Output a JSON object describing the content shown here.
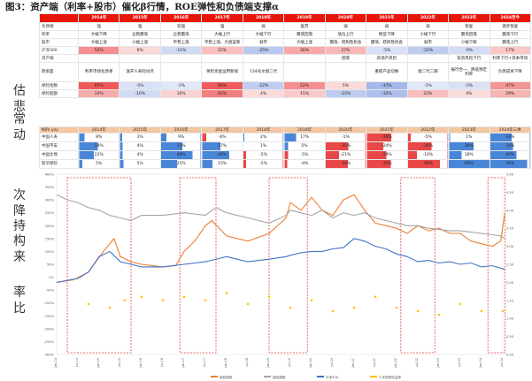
{
  "title": "图3：资产端（利率+股市）催化β行情，ROE弹性和负债端支撑α",
  "side_text": [
    "估",
    "悲",
    "常",
    "动",
    "次",
    "降",
    "持",
    "构",
    "来",
    "率",
    "比"
  ],
  "table1": {
    "years": [
      "2014年",
      "2015年",
      "2016年",
      "2017年",
      "2018年",
      "2019年",
      "2020年",
      "2021年",
      "2022年",
      "2023年",
      "2024至今"
    ],
    "rows": [
      {
        "label": "负债端",
        "cells": [
          "强",
          "强",
          "较强",
          "强",
          "弱",
          "复苏",
          "弱",
          "弱",
          "弱",
          "恢复",
          "逐步恢复"
        ]
      },
      {
        "label": "利率",
        "cells": [
          "大幅下降",
          "企稳震荡",
          "企稳震荡",
          "大幅上行",
          "大幅下行",
          "震荡回落",
          "低位上行",
          "明显下降",
          "小幅下行",
          "震荡回落",
          "震荡下行"
        ]
      },
      {
        "label": "股市",
        "cells": [
          "大幅上涨",
          "小幅上涨",
          "平稳上涨",
          "平稳上涨、大盘蓝筹",
          "弱市",
          "大幅上涨",
          "震荡、结构性机会",
          "震荡、结构性机会",
          "弱市",
          "小幅下跌",
          "震荡上行"
        ]
      },
      {
        "label": "沪深300",
        "cells": [
          "52%",
          "6%",
          "-11%",
          "22%",
          "-25%",
          "36%",
          "27%",
          "-5%",
          "-22%",
          "-9%",
          "17%"
        ]
      },
      {
        "label": "资产端",
        "cells": [
          "",
          "",
          "",
          "",
          "",
          "",
          "疫情",
          "房地产风险",
          "",
          "投资风险下行",
          "利率下行+资本市场"
        ]
      },
      {
        "label": "政策面",
        "cells": [
          "利率市场化改革",
          "放开人寿险试点",
          "",
          "保险资金运用新规",
          "134号文偿二代",
          "",
          "",
          "重疾产品切换",
          "偿二代二期",
          "报行合一、降低预定利率",
          "负债成本下降"
        ]
      },
      {
        "label": "保险指数",
        "cells": [
          "85%",
          "-5%",
          "-1%",
          "84%",
          "-22%",
          "52%",
          "5%",
          "-37%",
          "-1%",
          "-5%",
          "47%"
        ]
      },
      {
        "label": "保险超额",
        "cells": [
          "33%",
          "-10%",
          "10%",
          "62%",
          "4%",
          "15%",
          "-22%",
          "-32%",
          "22%",
          "4%",
          "29%"
        ]
      }
    ]
  },
  "table2": {
    "years": [
      "NBV yoy",
      "2014年",
      "2015年",
      "2016年",
      "2017年",
      "2018年",
      "2019年",
      "2020年",
      "2021年",
      "2022年",
      "2023年",
      "2024年三季"
    ],
    "rows": [
      {
        "label": "中国人寿",
        "values": [
          "8%",
          "3%",
          "9%",
          "-6%",
          "2%",
          "17%",
          "-1%",
          "-36%",
          "-5%",
          "1%",
          "33%"
        ]
      },
      {
        "label": "中国平安",
        "values": [
          "28%",
          "4%",
          "33%",
          "27%",
          "1%",
          "5%",
          "-35%",
          "-24%",
          "-36%",
          "36%",
          "35%"
        ]
      },
      {
        "label": "中国太保",
        "values": [
          "22%",
          "4%",
          "48%",
          "40%",
          "-5%",
          "-5%",
          "-21%",
          "-29%",
          "-14%",
          "18%",
          "40%"
        ]
      },
      {
        "label": "新华保险",
        "values": [
          "5%",
          "5%",
          "25%",
          "15%",
          "-5%",
          "-4%",
          "-34%",
          "-35%",
          "-49%",
          "69%",
          "56%"
        ]
      }
    ]
  },
  "chart_data": {
    "type": "line",
    "title": "",
    "xlabel": "",
    "ylabel": "",
    "x_ticks": [
      "Jan-14",
      "Jul-14",
      "Jan-15",
      "Jul-15",
      "Jan-16",
      "Jul-16",
      "Jan-17",
      "Jul-17",
      "Jan-18",
      "Jul-18",
      "Jan-19",
      "Jul-19",
      "Jan-20",
      "Jul-20",
      "Jan-21",
      "Jul-21",
      "Jan-22",
      "Jul-22",
      "Jan-23",
      "Jul-23",
      "Jan-24",
      "Jul-24"
    ],
    "y_left_ticks": [
      "-300%",
      "-250%",
      "-200%",
      "-150%",
      "-100%",
      "-50%",
      "0%",
      "50%",
      "100%",
      "150%",
      "200%",
      "250%",
      "300%",
      "350%",
      "400%"
    ],
    "y_right_ticks": [
      "0.00",
      "0.50",
      "1.00",
      "1.50",
      "2.00",
      "2.50",
      "3.00",
      "3.50",
      "4.00",
      "4.50",
      "5.00"
    ],
    "ylim_left": [
      -300,
      400
    ],
    "ylim_right": [
      0,
      5
    ],
    "highlight_periods": [
      {
        "start": 0.5,
        "end": 3.5
      },
      {
        "start": 5.8,
        "end": 7.5
      },
      {
        "start": 10.0,
        "end": 11.8
      },
      {
        "start": 16.2,
        "end": 17.8
      },
      {
        "start": 20.3,
        "end": 21.1
      }
    ],
    "series": [
      {
        "name": "保险指数",
        "axis": "left",
        "color": "#ed7d31",
        "x": [
          0,
          0.8,
          1.5,
          2.2,
          2.7,
          3.0,
          3.5,
          4.0,
          5,
          5.6,
          6,
          6.5,
          7,
          7.3,
          8,
          9,
          10,
          10.8,
          11,
          11.5,
          12,
          12.5,
          13,
          13.5,
          14,
          14.5,
          15,
          15.5,
          16,
          16.5,
          17,
          17.5,
          18,
          18.5,
          19,
          19.5,
          20,
          20.5,
          20.9,
          21.1
        ],
        "y": [
          -20,
          -10,
          20,
          100,
          150,
          80,
          60,
          50,
          40,
          45,
          100,
          140,
          200,
          220,
          160,
          140,
          170,
          230,
          290,
          260,
          310,
          260,
          240,
          300,
          320,
          260,
          210,
          200,
          190,
          170,
          200,
          180,
          190,
          170,
          170,
          140,
          130,
          120,
          140,
          250
        ]
      },
      {
        "name": "保险超额",
        "axis": "left",
        "color": "#a5a5a5",
        "x": [
          0,
          0.5,
          1,
          1.5,
          2,
          2.5,
          3,
          3.5,
          4,
          5,
          6,
          7,
          7.5,
          8,
          9,
          10,
          10.8,
          11,
          11.5,
          12,
          12.5,
          13,
          13.5,
          14,
          14.5,
          15,
          15.5,
          16,
          16.5,
          17,
          17.5,
          18,
          18.5,
          19,
          19.5,
          20,
          20.5,
          20.9,
          21.1
        ],
        "y": [
          320,
          300,
          290,
          270,
          260,
          240,
          230,
          220,
          240,
          240,
          250,
          240,
          270,
          250,
          230,
          210,
          240,
          260,
          250,
          240,
          260,
          230,
          250,
          240,
          250,
          230,
          220,
          210,
          200,
          200,
          190,
          185,
          180,
          180,
          175,
          170,
          165,
          160,
          150
        ]
      },
      {
        "name": "沪深300",
        "axis": "left",
        "color": "#4472c4",
        "x": [
          0,
          1,
          1.5,
          2,
          2.5,
          3,
          3.5,
          4,
          5,
          6,
          7,
          8,
          8.5,
          9,
          10,
          10.8,
          11,
          11.5,
          12,
          12.5,
          13,
          13.5,
          14,
          14.5,
          15,
          15.5,
          16,
          16.5,
          17,
          17.5,
          18,
          18.5,
          19,
          19.5,
          20,
          20.5,
          21.1
        ],
        "y": [
          -20,
          -5,
          20,
          80,
          100,
          60,
          50,
          40,
          40,
          50,
          60,
          80,
          70,
          60,
          70,
          80,
          85,
          95,
          100,
          100,
          110,
          115,
          150,
          140,
          120,
          110,
          90,
          80,
          60,
          65,
          55,
          60,
          50,
          55,
          40,
          45,
          30
        ]
      },
      {
        "name": "十年国债收益率",
        "axis": "right",
        "color": "#ffc000",
        "type": "scatter",
        "x": [
          1.5,
          2.5,
          3.2,
          4,
          5,
          6,
          7,
          8,
          9,
          10,
          11,
          12,
          13,
          14,
          15,
          16,
          17,
          18,
          19,
          20,
          21
        ],
        "y": [
          1.4,
          1.3,
          1.5,
          1.6,
          1.5,
          1.6,
          1.5,
          1.7,
          1.4,
          1.6,
          1.3,
          1.5,
          1.2,
          1.3,
          1.6,
          1.3,
          1.2,
          1.1,
          1.4,
          1.2,
          1.2
        ]
      }
    ],
    "legend": [
      "保险指数",
      "保险超额",
      "沪深300",
      "十年国债收益率"
    ]
  }
}
